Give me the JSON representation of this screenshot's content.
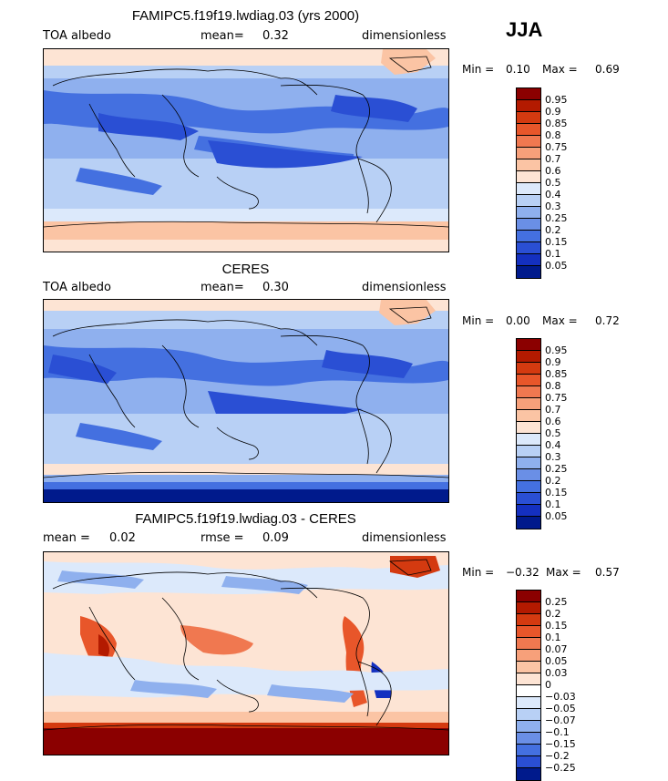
{
  "season": "JJA",
  "panels": [
    {
      "title": "FAMIPC5.f19f19.lwdiag.03 (yrs 2000)",
      "left_label": "TOA albedo",
      "stat_label": "mean=",
      "stat_value": "0.32",
      "stat2_label": "",
      "stat2_value": "",
      "units": "dimensionless",
      "min_label": "Min =",
      "min_value": "0.10",
      "max_label": "Max =",
      "max_value": "0.69"
    },
    {
      "title": "CERES",
      "left_label": "TOA albedo",
      "stat_label": "mean=",
      "stat_value": "0.30",
      "stat2_label": "",
      "stat2_value": "",
      "units": "dimensionless",
      "min_label": "Min =",
      "min_value": "0.00",
      "max_label": "Max =",
      "max_value": "0.72"
    },
    {
      "title": "FAMIPC5.f19f19.lwdiag.03 - CERES",
      "left_label": "mean =",
      "stat_label": "",
      "stat_value": "0.02",
      "stat2_label": "rmse =",
      "stat2_value": "0.09",
      "units": "dimensionless",
      "min_label": "Min =",
      "min_value": "−0.32",
      "max_label": "Max =",
      "max_value": "0.57"
    }
  ],
  "colorbar_abs": {
    "ticks": [
      "0.95",
      "0.9",
      "0.85",
      "0.8",
      "0.75",
      "0.7",
      "0.6",
      "0.5",
      "0.4",
      "0.3",
      "0.25",
      "0.2",
      "0.15",
      "0.1",
      "0.05"
    ],
    "colors": [
      "#8b0000",
      "#b31a00",
      "#d43a10",
      "#e8562a",
      "#f07850",
      "#f7a07a",
      "#fbc4a4",
      "#fde4d4",
      "#dce9fb",
      "#b8d0f5",
      "#8fb0ee",
      "#6a8fe6",
      "#4470e0",
      "#2a4fd4",
      "#1430c0",
      "#001a8c"
    ]
  },
  "colorbar_diff": {
    "ticks": [
      "0.25",
      "0.2",
      "0.15",
      "0.1",
      "0.07",
      "0.05",
      "0.03",
      "0",
      "−0.03",
      "−0.05",
      "−0.07",
      "−0.1",
      "−0.15",
      "−0.2",
      "−0.25"
    ],
    "colors": [
      "#8b0000",
      "#b31a00",
      "#d43a10",
      "#e8562a",
      "#f07850",
      "#f7a07a",
      "#fbc4a4",
      "#fde4d4",
      "#ffffff",
      "#dce9fb",
      "#b8d0f5",
      "#8fb0ee",
      "#6a8fe6",
      "#4470e0",
      "#2a4fd4",
      "#001a8c"
    ]
  }
}
